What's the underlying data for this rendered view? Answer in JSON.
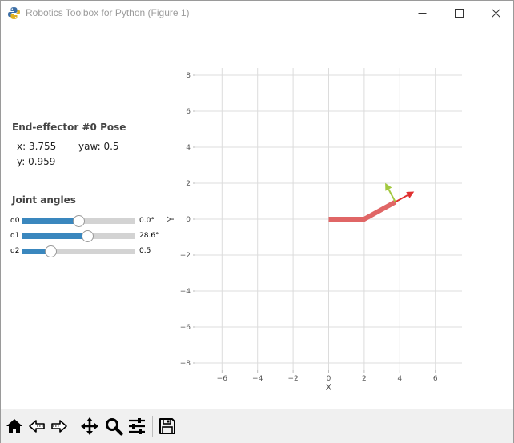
{
  "window": {
    "title": "Robotics Toolbox for Python (Figure 1)",
    "icons": {
      "app": "python-figure-icon",
      "minimize": "minimize-icon",
      "maximize": "maximize-icon",
      "close": "close-icon"
    }
  },
  "pose": {
    "heading": "End-effector #0 Pose",
    "x_text": "x: 3.755",
    "yaw_text": "yaw: 0.5",
    "y_text": "y: 0.959"
  },
  "joints": {
    "heading": "Joint angles",
    "items": [
      {
        "label": "q0",
        "value_text": "0.0°",
        "fraction": 0.5
      },
      {
        "label": "q1",
        "value_text": "28.6°",
        "fraction": 0.58
      },
      {
        "label": "q2",
        "value_text": "0.5",
        "fraction": 0.25
      }
    ]
  },
  "chart_data": {
    "type": "line",
    "xlabel": "X",
    "ylabel": "Y",
    "xlim": [
      -7.5,
      7.5
    ],
    "ylim": [
      -8.4,
      8.4
    ],
    "xticks": [
      -6,
      -4,
      -2,
      0,
      2,
      4,
      6
    ],
    "yticks": [
      -8,
      -6,
      -4,
      -2,
      0,
      2,
      4,
      6,
      8
    ],
    "xtick_labels": [
      "−6",
      "−4",
      "−2",
      "0",
      "2",
      "4",
      "6"
    ],
    "ytick_labels": [
      "−8",
      "−6",
      "−4",
      "−2",
      "0",
      "2",
      "4",
      "6",
      "8"
    ],
    "grid": true,
    "arm_color": "#e06666",
    "arm_points": [
      [
        0,
        0
      ],
      [
        2,
        0
      ],
      [
        3.755,
        0.959
      ]
    ],
    "frame": {
      "origin": [
        3.755,
        0.959
      ],
      "yaw": 0.5,
      "x_axis_color": "#e03030",
      "y_axis_color": "#a3c940"
    }
  },
  "toolbar": {
    "tools": [
      "home-icon",
      "back-icon",
      "forward-icon",
      "pan-icon",
      "zoom-icon",
      "configure-subplots-icon",
      "save-icon"
    ]
  }
}
